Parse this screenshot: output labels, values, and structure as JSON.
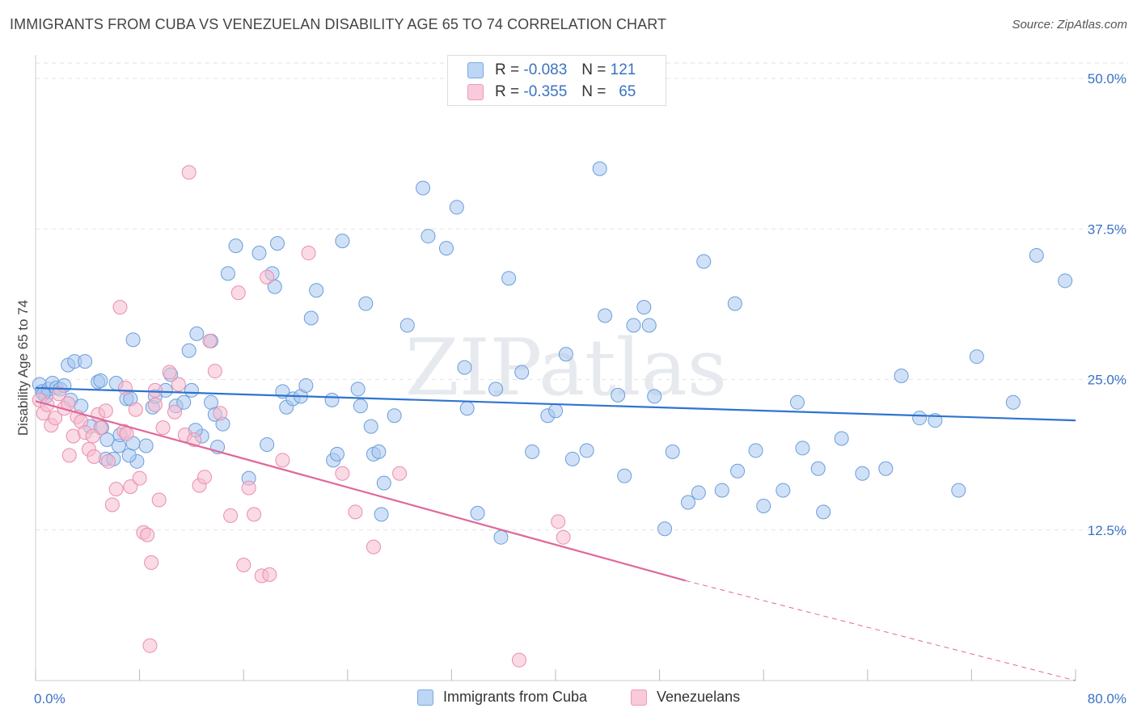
{
  "title": "IMMIGRANTS FROM CUBA VS VENEZUELAN DISABILITY AGE 65 TO 74 CORRELATION CHART",
  "source": "Source: ZipAtlas.com",
  "watermark": "ZIPatlas",
  "legend": {
    "rows": [
      {
        "r_label": "R =",
        "r_value": "-0.083",
        "n_label": "N =",
        "n_value": "121"
      },
      {
        "r_label": "R =",
        "r_value": "-0.355",
        "n_label": "N =",
        "n_value": "65"
      }
    ]
  },
  "bottom_legend": {
    "series1": "Immigrants from Cuba",
    "series2": "Venezuelans"
  },
  "chart_data": {
    "type": "scatter",
    "ylabel": "Disability Age 65 to 74",
    "xlabel": "",
    "xlim": [
      0,
      80
    ],
    "ylim": [
      0,
      50
    ],
    "x_tick_labels": [
      {
        "value": 0,
        "label": "0.0%"
      },
      {
        "value": 80,
        "label": "80.0%"
      }
    ],
    "y_tick_labels": [
      {
        "value": 12.5,
        "label": "12.5%"
      },
      {
        "value": 25,
        "label": "25.0%"
      },
      {
        "value": 37.5,
        "label": "37.5%"
      },
      {
        "value": 50,
        "label": "50.0%"
      }
    ],
    "grid": true,
    "colors": {
      "series1_fill": "#a9c9f0",
      "series1_stroke": "#6a9edb",
      "series1_line": "#2f73d0",
      "series2_fill": "#f6bcd0",
      "series2_stroke": "#e98eae",
      "series2_line": "#e0689a",
      "tick_label": "#3a72c4"
    },
    "series": [
      {
        "name": "Immigrants from Cuba",
        "trend": {
          "x0": 0,
          "y0": 24.3,
          "x1": 80,
          "y1": 21.6
        },
        "points": [
          [
            0.3,
            24.6
          ],
          [
            0.5,
            24.0
          ],
          [
            0.8,
            23.6
          ],
          [
            1.0,
            24.2
          ],
          [
            1.3,
            24.7
          ],
          [
            1.6,
            24.3
          ],
          [
            1.9,
            24.2
          ],
          [
            2.2,
            24.5
          ],
          [
            0.6,
            23.8
          ],
          [
            2.5,
            26.2
          ],
          [
            3.0,
            26.5
          ],
          [
            3.8,
            26.5
          ],
          [
            2.7,
            23.3
          ],
          [
            3.5,
            22.8
          ],
          [
            4.2,
            21.1
          ],
          [
            4.8,
            24.8
          ],
          [
            5.1,
            21.0
          ],
          [
            5.5,
            20.0
          ],
          [
            5.4,
            18.4
          ],
          [
            5.0,
            24.9
          ],
          [
            6.0,
            18.4
          ],
          [
            6.2,
            24.7
          ],
          [
            6.4,
            19.5
          ],
          [
            6.5,
            20.4
          ],
          [
            7.0,
            23.4
          ],
          [
            7.8,
            18.2
          ],
          [
            7.2,
            18.7
          ],
          [
            8.5,
            19.5
          ],
          [
            9.0,
            22.7
          ],
          [
            9.2,
            23.6
          ],
          [
            7.5,
            28.3
          ],
          [
            7.5,
            19.7
          ],
          [
            7.3,
            23.4
          ],
          [
            10.0,
            24.1
          ],
          [
            10.4,
            25.4
          ],
          [
            10.8,
            22.8
          ],
          [
            11.4,
            23.1
          ],
          [
            11.8,
            27.4
          ],
          [
            12.0,
            24.1
          ],
          [
            12.4,
            28.8
          ],
          [
            12.8,
            20.3
          ],
          [
            12.3,
            20.8
          ],
          [
            13.5,
            23.1
          ],
          [
            13.5,
            28.2
          ],
          [
            13.8,
            22.1
          ],
          [
            14.0,
            19.4
          ],
          [
            14.4,
            21.3
          ],
          [
            14.8,
            33.8
          ],
          [
            15.4,
            36.1
          ],
          [
            17.2,
            35.5
          ],
          [
            18.2,
            33.8
          ],
          [
            18.6,
            36.3
          ],
          [
            18.4,
            32.7
          ],
          [
            19.0,
            24.0
          ],
          [
            19.3,
            22.7
          ],
          [
            19.8,
            23.4
          ],
          [
            20.4,
            23.6
          ],
          [
            20.8,
            24.5
          ],
          [
            21.2,
            30.1
          ],
          [
            21.6,
            32.4
          ],
          [
            22.8,
            23.3
          ],
          [
            22.9,
            18.3
          ],
          [
            23.2,
            18.8
          ],
          [
            24.8,
            24.2
          ],
          [
            25.4,
            31.3
          ],
          [
            25.8,
            21.1
          ],
          [
            26.0,
            18.8
          ],
          [
            26.4,
            19.0
          ],
          [
            26.8,
            16.4
          ],
          [
            27.6,
            22.0
          ],
          [
            28.6,
            29.5
          ],
          [
            29.8,
            40.9
          ],
          [
            30.2,
            36.9
          ],
          [
            31.6,
            35.9
          ],
          [
            32.4,
            39.3
          ],
          [
            33.0,
            26.0
          ],
          [
            33.2,
            22.6
          ],
          [
            34.0,
            13.9
          ],
          [
            35.4,
            24.2
          ],
          [
            35.8,
            11.9
          ],
          [
            36.4,
            33.4
          ],
          [
            37.4,
            25.6
          ],
          [
            38.2,
            19.0
          ],
          [
            39.4,
            22.0
          ],
          [
            40.0,
            22.4
          ],
          [
            40.8,
            27.1
          ],
          [
            41.3,
            18.4
          ],
          [
            42.4,
            19.1
          ],
          [
            43.4,
            42.5
          ],
          [
            43.8,
            30.3
          ],
          [
            44.8,
            23.7
          ],
          [
            45.3,
            17.0
          ],
          [
            46.0,
            29.5
          ],
          [
            46.8,
            31.0
          ],
          [
            47.2,
            29.5
          ],
          [
            47.6,
            23.6
          ],
          [
            48.4,
            12.6
          ],
          [
            49.0,
            19.0
          ],
          [
            50.2,
            14.8
          ],
          [
            51.0,
            15.6
          ],
          [
            51.4,
            34.8
          ],
          [
            52.8,
            15.8
          ],
          [
            53.8,
            31.3
          ],
          [
            54.0,
            17.4
          ],
          [
            55.4,
            19.1
          ],
          [
            56.0,
            14.5
          ],
          [
            57.5,
            15.8
          ],
          [
            58.6,
            23.1
          ],
          [
            59.0,
            19.3
          ],
          [
            60.2,
            17.6
          ],
          [
            60.6,
            14.0
          ],
          [
            62.0,
            20.1
          ],
          [
            63.6,
            17.2
          ],
          [
            65.4,
            17.6
          ],
          [
            66.6,
            25.3
          ],
          [
            68.0,
            21.8
          ],
          [
            69.2,
            21.6
          ],
          [
            71.0,
            15.8
          ],
          [
            72.4,
            26.9
          ],
          [
            75.2,
            23.1
          ],
          [
            77.0,
            35.3
          ],
          [
            79.2,
            33.2
          ],
          [
            23.6,
            36.5
          ],
          [
            25.0,
            22.8
          ],
          [
            26.6,
            13.8
          ],
          [
            16.4,
            16.8
          ],
          [
            17.8,
            19.6
          ]
        ]
      },
      {
        "name": "Venezuelans",
        "trend": {
          "x0": 0,
          "y0": 23.2,
          "x1": 50,
          "y1": 8.3
        },
        "trend_dashed": {
          "x0": 50,
          "y0": 8.3,
          "x1": 80,
          "y1": 0
        },
        "points": [
          [
            0.3,
            23.3
          ],
          [
            0.6,
            22.2
          ],
          [
            0.9,
            22.9
          ],
          [
            1.2,
            21.2
          ],
          [
            1.5,
            21.8
          ],
          [
            1.8,
            23.8
          ],
          [
            2.2,
            22.6
          ],
          [
            2.5,
            23.0
          ],
          [
            2.6,
            18.7
          ],
          [
            2.9,
            20.3
          ],
          [
            3.2,
            21.9
          ],
          [
            3.5,
            21.5
          ],
          [
            3.8,
            20.6
          ],
          [
            4.1,
            19.2
          ],
          [
            4.5,
            18.6
          ],
          [
            4.8,
            22.1
          ],
          [
            5.0,
            21.0
          ],
          [
            5.4,
            22.4
          ],
          [
            5.6,
            18.2
          ],
          [
            5.9,
            14.6
          ],
          [
            6.2,
            15.9
          ],
          [
            6.5,
            31.0
          ],
          [
            6.8,
            20.7
          ],
          [
            7.0,
            20.5
          ],
          [
            7.3,
            16.1
          ],
          [
            7.7,
            22.5
          ],
          [
            8.0,
            16.8
          ],
          [
            8.3,
            12.3
          ],
          [
            8.6,
            12.1
          ],
          [
            8.9,
            9.8
          ],
          [
            9.2,
            22.9
          ],
          [
            9.5,
            15.0
          ],
          [
            9.8,
            21.0
          ],
          [
            10.3,
            25.6
          ],
          [
            10.7,
            22.3
          ],
          [
            11.0,
            24.6
          ],
          [
            11.5,
            20.4
          ],
          [
            11.8,
            42.2
          ],
          [
            12.2,
            20.0
          ],
          [
            12.6,
            16.2
          ],
          [
            13.0,
            16.9
          ],
          [
            13.4,
            28.2
          ],
          [
            13.8,
            25.7
          ],
          [
            14.2,
            22.2
          ],
          [
            15.0,
            13.7
          ],
          [
            15.6,
            32.2
          ],
          [
            16.0,
            9.6
          ],
          [
            16.4,
            16.0
          ],
          [
            16.8,
            13.8
          ],
          [
            17.4,
            8.7
          ],
          [
            18.0,
            8.8
          ],
          [
            17.8,
            33.5
          ],
          [
            19.0,
            18.3
          ],
          [
            21.0,
            35.5
          ],
          [
            23.6,
            17.2
          ],
          [
            24.6,
            14.0
          ],
          [
            26.0,
            11.1
          ],
          [
            4.4,
            20.3
          ],
          [
            6.9,
            24.3
          ],
          [
            9.2,
            24.1
          ],
          [
            8.8,
            2.9
          ],
          [
            37.2,
            1.7
          ],
          [
            40.2,
            13.2
          ],
          [
            40.6,
            11.9
          ],
          [
            28.0,
            17.2
          ]
        ]
      }
    ]
  }
}
